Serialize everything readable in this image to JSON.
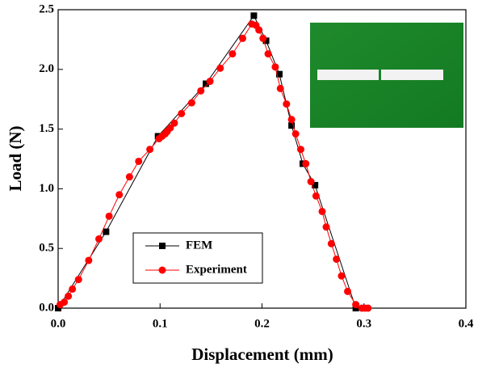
{
  "chart_data": {
    "type": "line",
    "x_label": "Displacement (mm)",
    "y_label": "Load (N)",
    "xlim": [
      0,
      0.4
    ],
    "xticks": [
      {
        "value": 0,
        "label": "0.0"
      },
      0.1,
      0.2,
      0.3,
      0.4
    ],
    "ylim": [
      0,
      2.5
    ],
    "yticks": [
      {
        "value": 0,
        "label": "0.0"
      },
      0.5,
      {
        "value": 1,
        "label": "1.0"
      },
      1.5,
      {
        "value": 2,
        "label": "2.0"
      },
      2.5
    ],
    "legend": "lower-left",
    "series": [
      {
        "name": "FEM",
        "color": "#000000",
        "marker": "square",
        "x": [
          0,
          0.047,
          0.098,
          0.145,
          0.192,
          0.204,
          0.217,
          0.229,
          0.24,
          0.252,
          0.292
        ],
        "values": [
          0,
          0.64,
          1.44,
          1.88,
          2.45,
          2.24,
          1.96,
          1.53,
          1.21,
          1.03,
          0
        ]
      },
      {
        "name": "Experiment",
        "color": "#ff0000",
        "marker": "circle",
        "x": [
          0.002,
          0.006,
          0.01,
          0.014,
          0.02,
          0.03,
          0.04,
          0.05,
          0.06,
          0.07,
          0.079,
          0.09,
          0.099,
          0.102,
          0.105,
          0.107,
          0.11,
          0.114,
          0.121,
          0.131,
          0.14,
          0.149,
          0.159,
          0.171,
          0.181,
          0.19,
          0.194,
          0.197,
          0.201,
          0.206,
          0.213,
          0.218,
          0.224,
          0.229,
          0.233,
          0.238,
          0.243,
          0.248,
          0.253,
          0.259,
          0.263,
          0.268,
          0.273,
          0.278,
          0.284,
          0.292,
          0.298,
          0.301,
          0.304
        ],
        "values": [
          0.03,
          0.05,
          0.1,
          0.16,
          0.24,
          0.4,
          0.58,
          0.77,
          0.95,
          1.1,
          1.23,
          1.33,
          1.42,
          1.44,
          1.46,
          1.48,
          1.51,
          1.55,
          1.63,
          1.72,
          1.82,
          1.9,
          2.01,
          2.13,
          2.26,
          2.38,
          2.37,
          2.33,
          2.26,
          2.13,
          2.02,
          1.84,
          1.71,
          1.58,
          1.46,
          1.33,
          1.21,
          1.06,
          0.94,
          0.81,
          0.68,
          0.54,
          0.41,
          0.27,
          0.14,
          0.03,
          0,
          0,
          0
        ]
      }
    ]
  }
}
